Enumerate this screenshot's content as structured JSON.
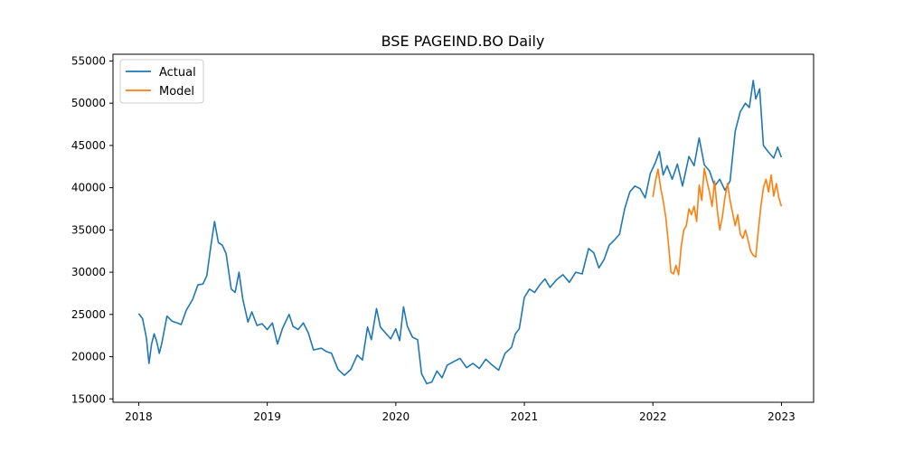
{
  "chart_data": {
    "type": "line",
    "title": "BSE PAGEIND.BO Daily",
    "xlabel": "",
    "ylabel": "",
    "xlim": [
      2017.8,
      2023.25
    ],
    "ylim": [
      14600,
      55800
    ],
    "x_ticks": [
      2018,
      2019,
      2020,
      2021,
      2022,
      2023
    ],
    "x_tick_labels": [
      "2018",
      "2019",
      "2020",
      "2021",
      "2022",
      "2023"
    ],
    "y_ticks": [
      15000,
      20000,
      25000,
      30000,
      35000,
      40000,
      45000,
      50000,
      55000
    ],
    "y_tick_labels": [
      "15000",
      "20000",
      "25000",
      "30000",
      "35000",
      "40000",
      "45000",
      "50000",
      "55000"
    ],
    "grid": false,
    "legend_position": "top-left",
    "series": [
      {
        "name": "Actual",
        "color": "#1f77b4",
        "x": [
          2018.0,
          2018.03,
          2018.06,
          2018.08,
          2018.1,
          2018.12,
          2018.14,
          2018.16,
          2018.18,
          2018.22,
          2018.26,
          2018.3,
          2018.33,
          2018.37,
          2018.42,
          2018.46,
          2018.5,
          2018.53,
          2018.56,
          2018.59,
          2018.62,
          2018.65,
          2018.68,
          2018.72,
          2018.75,
          2018.78,
          2018.81,
          2018.85,
          2018.88,
          2018.9,
          2018.92,
          2018.96,
          2019.0,
          2019.04,
          2019.08,
          2019.12,
          2019.17,
          2019.2,
          2019.24,
          2019.28,
          2019.32,
          2019.36,
          2019.42,
          2019.46,
          2019.5,
          2019.55,
          2019.6,
          2019.65,
          2019.7,
          2019.74,
          2019.78,
          2019.81,
          2019.85,
          2019.88,
          2019.92,
          2019.96,
          2020.0,
          2020.03,
          2020.06,
          2020.09,
          2020.13,
          2020.17,
          2020.2,
          2020.24,
          2020.28,
          2020.32,
          2020.36,
          2020.4,
          2020.45,
          2020.5,
          2020.55,
          2020.6,
          2020.65,
          2020.7,
          2020.75,
          2020.8,
          2020.85,
          2020.9,
          2020.93,
          2020.96,
          2021.0,
          2021.04,
          2021.08,
          2021.12,
          2021.16,
          2021.2,
          2021.25,
          2021.3,
          2021.35,
          2021.4,
          2021.45,
          2021.5,
          2021.54,
          2021.58,
          2021.62,
          2021.66,
          2021.7,
          2021.74,
          2021.78,
          2021.82,
          2021.86,
          2021.9,
          2021.94,
          2021.98,
          2022.02,
          2022.05,
          2022.08,
          2022.11,
          2022.15,
          2022.19,
          2022.23,
          2022.28,
          2022.32,
          2022.36,
          2022.4,
          2022.44,
          2022.48,
          2022.52,
          2022.56,
          2022.6,
          2022.64,
          2022.68,
          2022.72,
          2022.75,
          2022.78,
          2022.8,
          2022.83,
          2022.86,
          2022.9,
          2022.94,
          2022.97,
          2023.0
        ],
        "y": [
          25100,
          24500,
          22200,
          19200,
          21500,
          22700,
          21800,
          20400,
          21600,
          24800,
          24200,
          24000,
          23800,
          25500,
          26800,
          28500,
          28600,
          29600,
          33000,
          36000,
          33500,
          33200,
          32200,
          28000,
          27600,
          30000,
          26800,
          24100,
          25300,
          24500,
          23700,
          23900,
          23200,
          24000,
          21500,
          23400,
          25000,
          23600,
          23200,
          24000,
          22800,
          20800,
          21000,
          20600,
          20400,
          18500,
          17800,
          18500,
          20200,
          19600,
          23500,
          22000,
          25700,
          23500,
          22800,
          22100,
          23300,
          21900,
          25900,
          23600,
          22300,
          22000,
          18000,
          16800,
          17000,
          18300,
          17500,
          19000,
          19400,
          19800,
          18700,
          19200,
          18600,
          19700,
          19000,
          18400,
          20400,
          21100,
          22700,
          23300,
          27000,
          28000,
          27600,
          28500,
          29200,
          28200,
          29100,
          29700,
          28800,
          30000,
          29800,
          32800,
          32300,
          30500,
          31500,
          33200,
          33800,
          34500,
          37500,
          39500,
          40200,
          39900,
          38800,
          41700,
          43000,
          44300,
          41500,
          42600,
          41000,
          42800,
          40200,
          43700,
          42600,
          45900,
          42700,
          42000,
          40200,
          41000,
          39700,
          40800,
          46700,
          49000,
          50000,
          49500,
          52700,
          50500,
          51700,
          45000,
          44200,
          43500,
          44800,
          43600
        ]
      },
      {
        "name": "Model",
        "color": "#ff7f0e",
        "x": [
          2022.0,
          2022.02,
          2022.04,
          2022.06,
          2022.08,
          2022.1,
          2022.12,
          2022.14,
          2022.16,
          2022.18,
          2022.2,
          2022.22,
          2022.24,
          2022.26,
          2022.28,
          2022.3,
          2022.32,
          2022.34,
          2022.36,
          2022.38,
          2022.4,
          2022.42,
          2022.44,
          2022.46,
          2022.48,
          2022.5,
          2022.52,
          2022.54,
          2022.56,
          2022.58,
          2022.6,
          2022.62,
          2022.64,
          2022.66,
          2022.68,
          2022.7,
          2022.72,
          2022.74,
          2022.76,
          2022.78,
          2022.8,
          2022.82,
          2022.84,
          2022.86,
          2022.88,
          2022.9,
          2022.92,
          2022.94,
          2022.96,
          2022.98,
          2023.0
        ],
        "y": [
          38900,
          40800,
          42200,
          40000,
          38500,
          36500,
          33500,
          30000,
          29800,
          30800,
          29700,
          33000,
          35000,
          35500,
          37500,
          36800,
          37800,
          36000,
          40300,
          38500,
          42300,
          40800,
          39500,
          37800,
          40800,
          37500,
          35000,
          36500,
          38800,
          40500,
          38500,
          37000,
          35500,
          36800,
          34500,
          34000,
          35000,
          33800,
          32500,
          32000,
          31800,
          35000,
          37800,
          40000,
          41000,
          39500,
          41500,
          39000,
          40500,
          38800,
          37800
        ]
      }
    ]
  }
}
